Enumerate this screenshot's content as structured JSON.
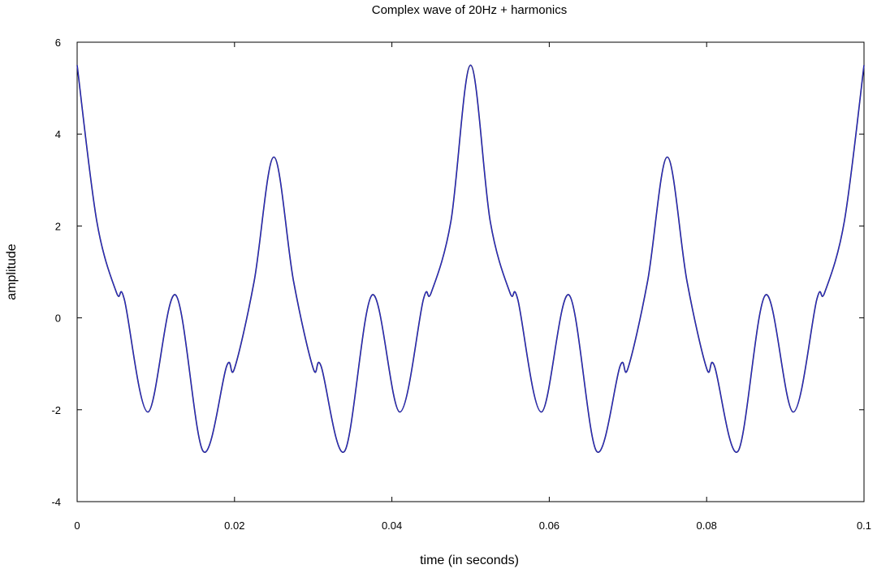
{
  "chart_data": {
    "type": "line",
    "title": "Complex wave of 20Hz + harmonics",
    "xlabel": "time (in seconds)",
    "ylabel": "amplitude",
    "xlim": [
      0,
      0.1
    ],
    "ylim": [
      -4,
      6
    ],
    "x_ticks": [
      "0",
      "0.02",
      "0.04",
      "0.06",
      "0.08",
      "0.1"
    ],
    "y_ticks": [
      "-4",
      "-2",
      "0",
      "2",
      "4",
      "6"
    ],
    "grid": false,
    "legend": "none",
    "series": [
      {
        "color": "#2b2bd6",
        "x": [
          0,
          0.0025,
          0.005,
          0.006,
          0.009,
          0.0125,
          0.016,
          0.019,
          0.02,
          0.0225,
          0.025,
          0.0275,
          0.03,
          0.031,
          0.034,
          0.0375,
          0.041,
          0.044,
          0.045,
          0.0475,
          0.05,
          0.0525,
          0.055,
          0.056,
          0.059,
          0.0625,
          0.066,
          0.069,
          0.07,
          0.0725,
          0.075,
          0.0775,
          0.08,
          0.081,
          0.084,
          0.0875,
          0.091,
          0.094,
          0.095,
          0.0975,
          0.1
        ],
        "y": [
          5.5,
          2.1,
          0.55,
          0.4,
          -2.05,
          0.5,
          -2.9,
          -1.05,
          -1.1,
          0.8,
          3.5,
          0.8,
          -1.1,
          -1.05,
          -2.9,
          0.5,
          -2.05,
          0.4,
          0.55,
          2.1,
          5.5,
          2.1,
          0.55,
          0.4,
          -2.05,
          0.5,
          -2.9,
          -1.05,
          -1.1,
          0.8,
          3.5,
          0.8,
          -1.1,
          -1.05,
          -2.9,
          0.5,
          -2.05,
          0.4,
          0.55,
          2.1,
          5.5
        ]
      }
    ]
  }
}
